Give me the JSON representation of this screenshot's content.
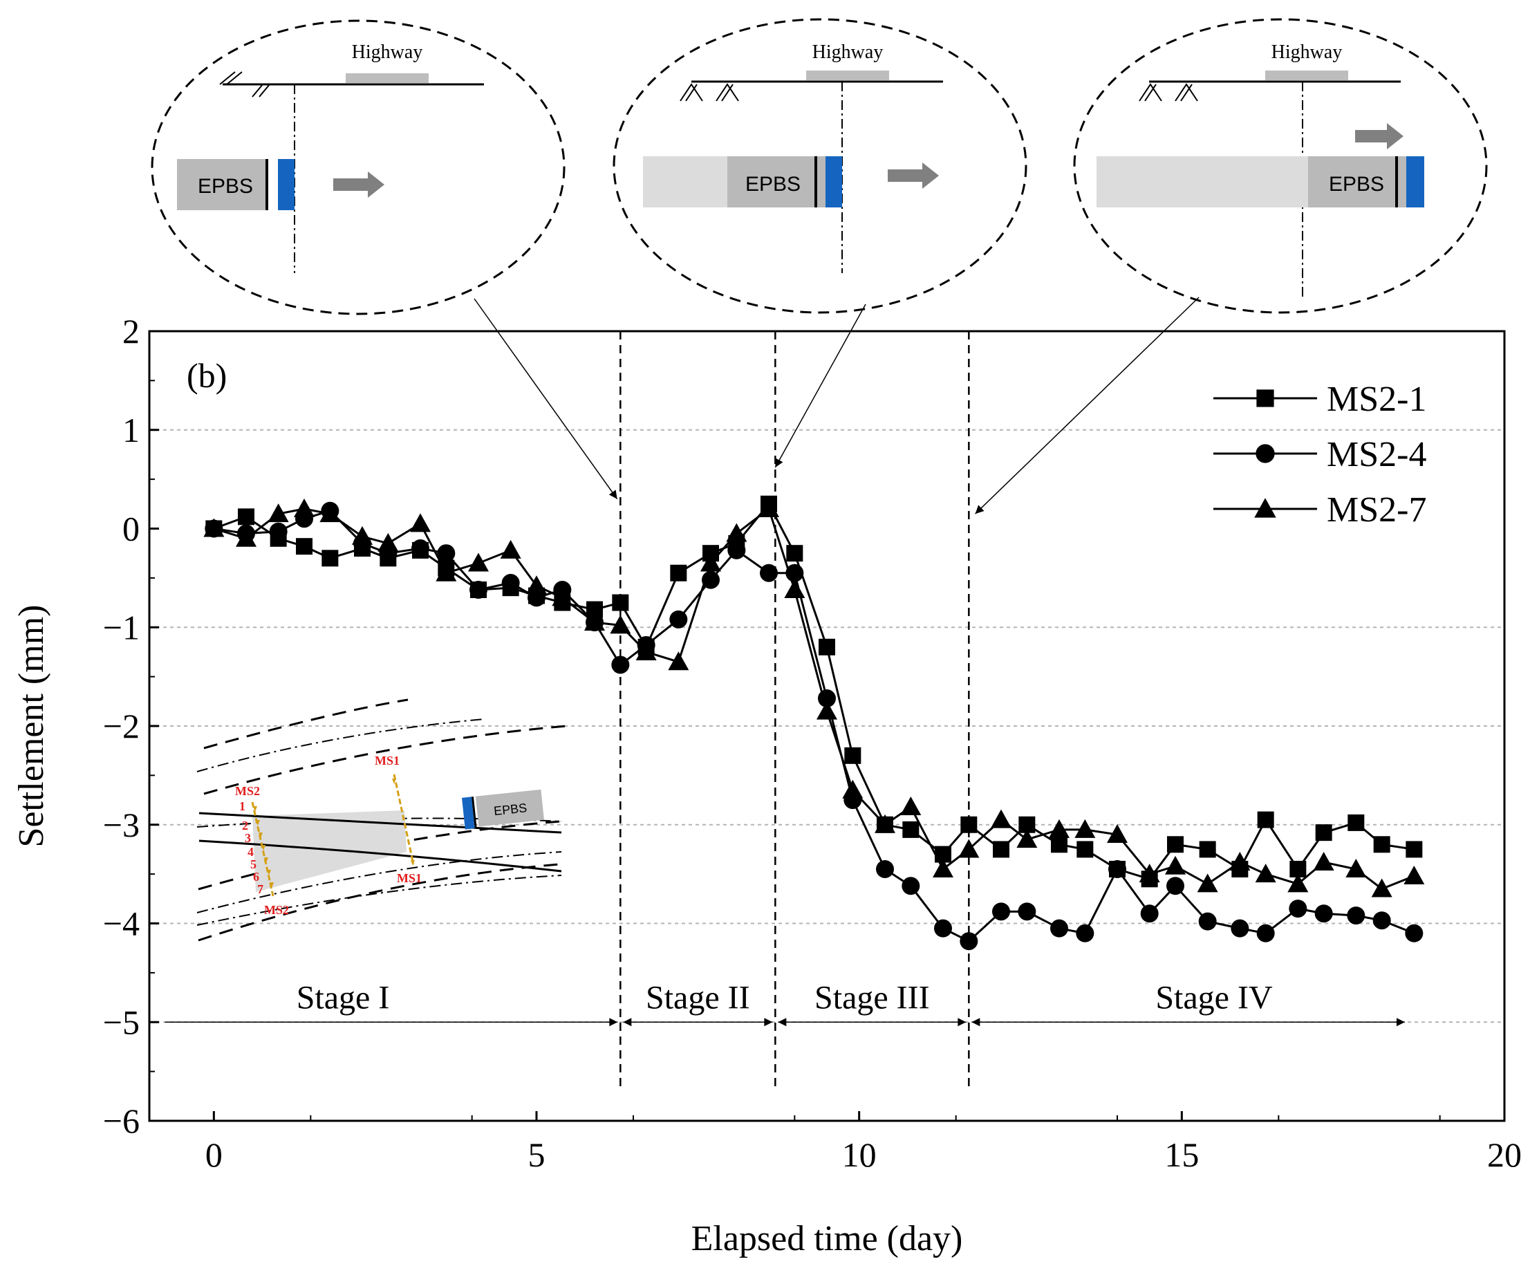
{
  "chart_data": {
    "type": "line",
    "panel_label": "(b)",
    "xlabel": "Elapsed time (day)",
    "ylabel": "Settlement (mm)",
    "xlim": [
      -1,
      20
    ],
    "ylim": [
      -6,
      2
    ],
    "xticks": [
      0,
      5,
      10,
      15,
      20
    ],
    "yticks": [
      -6,
      -5,
      -4,
      -3,
      -2,
      -1,
      0,
      1,
      2
    ],
    "x_minor_step": 2.5,
    "y_minor_step": 0.5,
    "grid_y_values": [
      -5,
      -4,
      -3,
      -2,
      -1,
      1
    ],
    "legend_position": "top-right",
    "series": [
      {
        "name": "MS2-1",
        "marker": "square",
        "x": [
          0,
          0.5,
          1.0,
          1.4,
          1.8,
          2.3,
          2.7,
          3.2,
          3.6,
          4.1,
          4.6,
          5.0,
          5.4,
          5.9,
          6.3,
          6.7,
          7.2,
          7.7,
          8.1,
          8.6,
          9.0,
          9.5,
          9.9,
          10.4,
          10.8,
          11.3,
          11.7,
          12.2,
          12.6,
          13.1,
          13.5,
          14.0,
          14.5,
          14.9,
          15.4,
          15.9,
          16.3,
          16.8,
          17.2,
          17.7,
          18.1,
          18.6
        ],
        "y": [
          0.0,
          0.12,
          -0.1,
          -0.18,
          -0.3,
          -0.2,
          -0.3,
          -0.22,
          -0.4,
          -0.62,
          -0.6,
          -0.68,
          -0.75,
          -0.82,
          -0.75,
          -1.2,
          -0.45,
          -0.25,
          -0.15,
          0.25,
          -0.25,
          -1.2,
          -2.3,
          -3.0,
          -3.05,
          -3.3,
          -3.0,
          -3.25,
          -3.0,
          -3.2,
          -3.25,
          -3.45,
          -3.55,
          -3.2,
          -3.25,
          -3.45,
          -2.95,
          -3.45,
          -3.08,
          -2.98,
          -3.2,
          -3.25
        ]
      },
      {
        "name": "MS2-4",
        "marker": "circle",
        "x": [
          0,
          0.5,
          1.0,
          1.4,
          1.8,
          2.3,
          2.7,
          3.2,
          3.6,
          4.1,
          4.6,
          5.0,
          5.4,
          5.9,
          6.3,
          6.7,
          7.2,
          7.7,
          8.1,
          8.6,
          9.0,
          9.5,
          9.9,
          10.4,
          10.8,
          11.3,
          11.7,
          12.2,
          12.6,
          13.1,
          13.5,
          14.0,
          14.5,
          14.9,
          15.4,
          15.9,
          16.3,
          16.8,
          17.2,
          17.7,
          18.1,
          18.6
        ],
        "y": [
          0.0,
          -0.05,
          -0.03,
          0.1,
          0.18,
          -0.15,
          -0.25,
          -0.2,
          -0.25,
          -0.62,
          -0.55,
          -0.7,
          -0.62,
          -0.95,
          -1.38,
          -1.18,
          -0.92,
          -0.52,
          -0.22,
          -0.45,
          -0.45,
          -1.72,
          -2.75,
          -3.45,
          -3.62,
          -4.05,
          -4.18,
          -3.88,
          -3.88,
          -4.05,
          -4.1,
          -3.45,
          -3.9,
          -3.62,
          -3.98,
          -4.05,
          -4.1,
          -3.85,
          -3.9,
          -3.92,
          -3.97,
          -4.1
        ]
      },
      {
        "name": "MS2-7",
        "marker": "triangle",
        "x": [
          0,
          0.5,
          1.0,
          1.4,
          1.8,
          2.3,
          2.7,
          3.2,
          3.6,
          4.1,
          4.6,
          5.0,
          5.4,
          5.9,
          6.3,
          6.7,
          7.2,
          7.7,
          8.1,
          8.6,
          9.0,
          9.5,
          9.9,
          10.4,
          10.8,
          11.3,
          11.7,
          12.2,
          12.6,
          13.1,
          13.5,
          14.0,
          14.5,
          14.9,
          15.4,
          15.9,
          16.3,
          16.8,
          17.2,
          17.7,
          18.1,
          18.6
        ],
        "y": [
          0.0,
          -0.1,
          0.15,
          0.2,
          0.15,
          -0.08,
          -0.15,
          0.05,
          -0.45,
          -0.35,
          -0.22,
          -0.58,
          -0.7,
          -0.95,
          -0.98,
          -1.25,
          -1.35,
          -0.35,
          -0.05,
          0.2,
          -0.62,
          -1.85,
          -2.65,
          -3.0,
          -2.82,
          -3.45,
          -3.25,
          -2.95,
          -3.15,
          -3.05,
          -3.05,
          -3.1,
          -3.5,
          -3.42,
          -3.6,
          -3.38,
          -3.5,
          -3.6,
          -3.38,
          -3.45,
          -3.65,
          -3.52
        ]
      }
    ],
    "stage_boundaries": [
      6.3,
      8.7,
      11.7
    ],
    "stages": [
      {
        "label": "Stage I",
        "from": -0.8,
        "to": 6.3,
        "label_x": 2.0,
        "arrow_y": -5.0,
        "label_y": -4.75
      },
      {
        "label": "Stage II",
        "from": 6.3,
        "to": 8.7,
        "label_x": 7.5,
        "arrow_y": -5.0,
        "label_y": -4.75
      },
      {
        "label": "Stage III",
        "from": 8.7,
        "to": 11.7,
        "label_x": 10.2,
        "arrow_y": -5.0,
        "label_y": -4.75
      },
      {
        "label": "Stage IV",
        "from": 11.7,
        "to": 18.5,
        "label_x": 15.5,
        "arrow_y": -5.0,
        "label_y": -4.75
      }
    ],
    "callout_targets": [
      {
        "x": 6.25,
        "y": 0.3
      },
      {
        "x": 8.7,
        "y": 0.62
      },
      {
        "x": 11.8,
        "y": 0.15
      }
    ]
  },
  "schematics": {
    "highway_label": "Highway",
    "machine_label": "EPBS",
    "insets": [
      {
        "stage": "before"
      },
      {
        "stage": "under"
      },
      {
        "stage": "after"
      }
    ]
  },
  "plan_inset": {
    "machine_label": "EPBS",
    "section_labels": [
      "MS2",
      "MS1",
      "MS1",
      "MS2"
    ],
    "point_numbers": [
      "1",
      "2",
      "3",
      "4",
      "5",
      "6",
      "7"
    ]
  },
  "colors": {
    "axis": "#000000",
    "grid": "#b4b4b4",
    "shield_blue": "#1565c0",
    "machine_gray": "#b9b9b9",
    "tunnel_light": "#dcdcdc",
    "highway_gray": "#bdbdbd",
    "arrow_gray": "#808080",
    "annotation_red": "#e02020",
    "marker_orange": "#d4a017"
  }
}
